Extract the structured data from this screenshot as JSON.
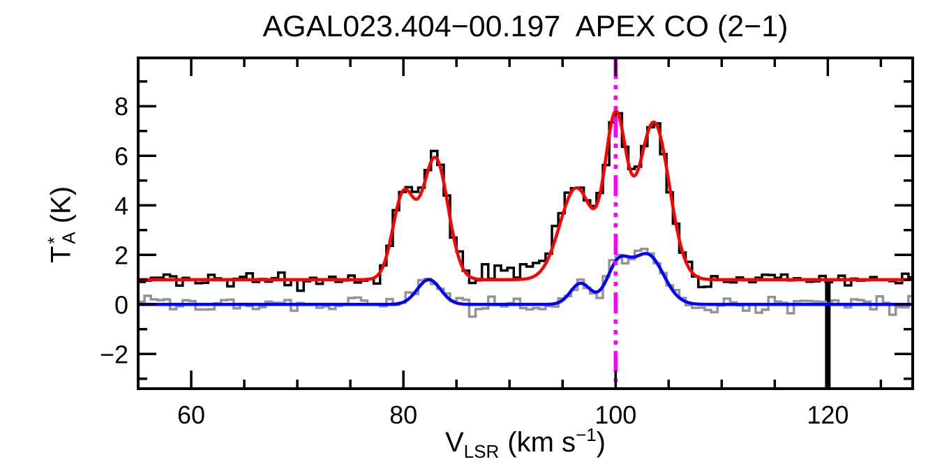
{
  "chart_data": {
    "type": "line",
    "title": "AGAL023.404−00.197  APEX CO (2−1)",
    "xlabel": "V_LSR (km s^-1)",
    "ylabel": "T_A* (K)",
    "xlabel_parts": {
      "main": "V",
      "sub": "LSR",
      "mid": "(km s",
      "sup": "−1",
      "end": ")"
    },
    "ylabel_parts": {
      "main": "T",
      "sup": "*",
      "sub": "A",
      "unit": "(K)"
    },
    "xlim": [
      55,
      128
    ],
    "ylim": [
      -3.4,
      9.95
    ],
    "grid": false,
    "legend": false,
    "background": "#FFFFFF",
    "frame_color": "#000000",
    "text_color": "#000000",
    "x_ticks": {
      "values": [
        60,
        80,
        100,
        120
      ],
      "labels": [
        "60",
        "80",
        "100",
        "120"
      ],
      "minor_step": 5
    },
    "y_ticks": {
      "values": [
        -2,
        0,
        2,
        4,
        6,
        8
      ],
      "labels": [
        "−2",
        "0",
        "2",
        "4",
        "6",
        "8"
      ],
      "minor_step": 1
    },
    "marker_line": {
      "x": 100.0,
      "color": "#FF00FF",
      "style": "dash-dot-dot-dot",
      "meaning": "fitted LSR velocity marker"
    },
    "channel_width": 0.6,
    "noise_sigma": 0.16,
    "seed": 20,
    "series": [
      {
        "name": "co21-spectrum",
        "kind": "histogram",
        "color": "#000000",
        "baseline": 1.0,
        "gaussians": [
          {
            "amp": 3.4,
            "center": 80.0,
            "sigma": 1.0
          },
          {
            "amp": 4.9,
            "center": 83.0,
            "sigma": 1.2
          },
          {
            "amp": 0.45,
            "center": 91.5,
            "sigma": 3.5
          },
          {
            "amp": 3.7,
            "center": 96.3,
            "sigma": 1.55
          },
          {
            "amp": 6.3,
            "center": 100.0,
            "sigma": 1.0
          },
          {
            "amp": 6.35,
            "center": 103.6,
            "sigma": 1.45
          }
        ],
        "spike": {
          "x": 120.0,
          "top": 1.0,
          "bottom": -3.4
        }
      },
      {
        "name": "second-spectrum",
        "kind": "histogram",
        "color": "#949494",
        "baseline": 0.0,
        "gaussians": [
          {
            "amp": 1.0,
            "center": 82.4,
            "sigma": 1.1
          },
          {
            "amp": 0.85,
            "center": 96.7,
            "sigma": 0.95
          },
          {
            "amp": 1.5,
            "center": 100.2,
            "sigma": 1.05
          },
          {
            "amp": 2.0,
            "center": 103.0,
            "sigma": 1.5
          }
        ]
      },
      {
        "name": "second-spectrum-fit",
        "kind": "curve",
        "color": "#0000FF",
        "baseline": 0.0,
        "gaussians": [
          {
            "amp": 1.0,
            "center": 82.4,
            "sigma": 1.1
          },
          {
            "amp": 0.85,
            "center": 96.7,
            "sigma": 0.95
          },
          {
            "amp": 1.5,
            "center": 100.2,
            "sigma": 1.05
          },
          {
            "amp": 2.0,
            "center": 103.0,
            "sigma": 1.5
          }
        ]
      },
      {
        "name": "co21-spectrum-fit",
        "kind": "curve",
        "color": "#FF0000",
        "baseline": 1.0,
        "gaussians": [
          {
            "amp": 3.4,
            "center": 80.0,
            "sigma": 1.0
          },
          {
            "amp": 4.9,
            "center": 83.0,
            "sigma": 1.2
          },
          {
            "amp": 3.7,
            "center": 96.3,
            "sigma": 1.55
          },
          {
            "amp": 6.3,
            "center": 100.0,
            "sigma": 1.0
          },
          {
            "amp": 6.35,
            "center": 103.6,
            "sigma": 1.45
          }
        ]
      }
    ],
    "peak_annotations": {
      "co21_peaks_K": [
        4.7,
        6.0,
        4.8,
        7.8,
        7.4
      ],
      "co21_peak_velocities_kms": [
        80.0,
        83.0,
        96.3,
        100.0,
        103.6
      ],
      "second_peaks_K": [
        1.0,
        0.9,
        1.9,
        2.0
      ],
      "second_peak_velocities_kms": [
        82.4,
        96.7,
        100.2,
        103.0
      ]
    }
  }
}
